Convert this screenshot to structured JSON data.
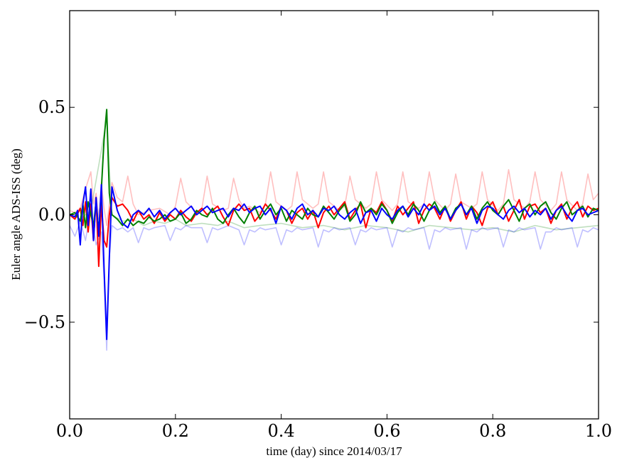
{
  "chart_data": {
    "type": "line",
    "title": "",
    "xlabel": "time (day) since 2014/03/17",
    "ylabel": "Euler angle ADS-ISS (deg)",
    "xlim": [
      0.0,
      1.0
    ],
    "ylim": [
      -0.95,
      0.95
    ],
    "xticks": [
      0.0,
      0.2,
      0.4,
      0.6,
      0.8,
      1.0
    ],
    "xtick_labels": [
      "0.0",
      "0.2",
      "0.4",
      "0.6",
      "0.8",
      "1.0"
    ],
    "yticks": [
      0.5,
      0.0,
      -0.5
    ],
    "ytick_labels": [
      "0.5",
      "0.0",
      "−0.5"
    ],
    "grid": false,
    "legend": "none",
    "series": [
      {
        "color": "#ff0000",
        "opacity": 0.25,
        "x": [
          0.0,
          0.01,
          0.02,
          0.03,
          0.04,
          0.045,
          0.05,
          0.055,
          0.06,
          0.065,
          0.07,
          0.08,
          0.09,
          0.1,
          0.11,
          0.12,
          0.13,
          0.15,
          0.17,
          0.19,
          0.2,
          0.21,
          0.22,
          0.24,
          0.25,
          0.26,
          0.27,
          0.29,
          0.3,
          0.31,
          0.32,
          0.33,
          0.34,
          0.36,
          0.37,
          0.38,
          0.39,
          0.41,
          0.42,
          0.43,
          0.44,
          0.46,
          0.47,
          0.48,
          0.49,
          0.51,
          0.52,
          0.53,
          0.54,
          0.56,
          0.57,
          0.58,
          0.59,
          0.61,
          0.62,
          0.63,
          0.64,
          0.66,
          0.67,
          0.68,
          0.69,
          0.71,
          0.72,
          0.73,
          0.74,
          0.76,
          0.77,
          0.78,
          0.79,
          0.81,
          0.82,
          0.83,
          0.84,
          0.86,
          0.87,
          0.88,
          0.89,
          0.91,
          0.92,
          0.93,
          0.94,
          0.96,
          0.97,
          0.98,
          0.99,
          1.0
        ],
        "y": [
          0.02,
          0.01,
          0.03,
          0.12,
          0.2,
          0.05,
          0.1,
          -0.02,
          0.15,
          0.03,
          -0.05,
          0.15,
          0.08,
          0.06,
          0.18,
          0.05,
          0.0,
          0.02,
          0.03,
          0.0,
          0.04,
          0.17,
          0.06,
          0.01,
          0.03,
          0.18,
          0.05,
          0.02,
          0.03,
          0.17,
          0.07,
          0.03,
          0.04,
          0.01,
          0.05,
          0.2,
          0.06,
          0.02,
          0.04,
          0.2,
          0.07,
          0.03,
          0.05,
          0.2,
          0.06,
          0.02,
          0.04,
          0.18,
          0.07,
          0.03,
          0.05,
          0.2,
          0.07,
          0.02,
          0.05,
          0.2,
          0.06,
          0.03,
          0.05,
          0.2,
          0.07,
          0.02,
          0.05,
          0.19,
          0.06,
          0.03,
          0.05,
          0.2,
          0.07,
          0.02,
          0.05,
          0.21,
          0.07,
          0.03,
          0.06,
          0.2,
          0.07,
          0.02,
          0.05,
          0.2,
          0.07,
          0.02,
          0.05,
          0.19,
          0.07,
          0.1
        ]
      },
      {
        "color": "#008000",
        "opacity": 0.25,
        "x": [
          0.0,
          0.02,
          0.04,
          0.06,
          0.07,
          0.08,
          0.1,
          0.12,
          0.14,
          0.16,
          0.18,
          0.2,
          0.22,
          0.25,
          0.28,
          0.3,
          0.33,
          0.36,
          0.4,
          0.44,
          0.48,
          0.52,
          0.56,
          0.6,
          0.64,
          0.68,
          0.72,
          0.76,
          0.8,
          0.84,
          0.88,
          0.92,
          0.96,
          1.0
        ],
        "y": [
          0.0,
          -0.02,
          0.02,
          0.3,
          0.45,
          0.0,
          -0.03,
          -0.02,
          -0.05,
          -0.03,
          -0.04,
          -0.02,
          -0.05,
          -0.04,
          -0.05,
          -0.03,
          -0.06,
          -0.05,
          -0.04,
          -0.06,
          -0.05,
          -0.07,
          -0.05,
          -0.06,
          -0.08,
          -0.05,
          -0.06,
          -0.07,
          -0.06,
          -0.08,
          -0.05,
          -0.07,
          -0.06,
          -0.05
        ]
      },
      {
        "color": "#0000ff",
        "opacity": 0.25,
        "x": [
          0.0,
          0.01,
          0.02,
          0.03,
          0.04,
          0.05,
          0.06,
          0.065,
          0.07,
          0.075,
          0.08,
          0.09,
          0.1,
          0.11,
          0.12,
          0.13,
          0.14,
          0.15,
          0.16,
          0.18,
          0.19,
          0.2,
          0.21,
          0.22,
          0.23,
          0.25,
          0.26,
          0.27,
          0.28,
          0.29,
          0.3,
          0.32,
          0.33,
          0.34,
          0.35,
          0.36,
          0.37,
          0.39,
          0.4,
          0.41,
          0.42,
          0.43,
          0.44,
          0.46,
          0.47,
          0.48,
          0.49,
          0.5,
          0.51,
          0.53,
          0.54,
          0.55,
          0.56,
          0.57,
          0.58,
          0.6,
          0.61,
          0.62,
          0.63,
          0.64,
          0.65,
          0.67,
          0.68,
          0.69,
          0.7,
          0.71,
          0.72,
          0.74,
          0.75,
          0.76,
          0.77,
          0.78,
          0.79,
          0.81,
          0.82,
          0.83,
          0.84,
          0.85,
          0.86,
          0.88,
          0.89,
          0.9,
          0.91,
          0.92,
          0.93,
          0.95,
          0.96,
          0.97,
          0.98,
          0.99,
          1.0
        ],
        "y": [
          -0.05,
          -0.1,
          -0.03,
          -0.12,
          0.03,
          -0.14,
          -0.08,
          -0.3,
          -0.63,
          -0.2,
          -0.05,
          -0.07,
          -0.06,
          -0.08,
          -0.06,
          -0.13,
          -0.06,
          -0.07,
          -0.06,
          -0.05,
          -0.12,
          -0.06,
          -0.07,
          -0.05,
          -0.06,
          -0.06,
          -0.13,
          -0.06,
          -0.07,
          -0.06,
          -0.05,
          -0.07,
          -0.14,
          -0.07,
          -0.08,
          -0.06,
          -0.07,
          -0.06,
          -0.14,
          -0.07,
          -0.08,
          -0.06,
          -0.07,
          -0.06,
          -0.15,
          -0.07,
          -0.08,
          -0.06,
          -0.07,
          -0.06,
          -0.14,
          -0.07,
          -0.08,
          -0.06,
          -0.07,
          -0.06,
          -0.15,
          -0.07,
          -0.08,
          -0.06,
          -0.07,
          -0.06,
          -0.16,
          -0.07,
          -0.08,
          -0.06,
          -0.07,
          -0.06,
          -0.16,
          -0.07,
          -0.08,
          -0.06,
          -0.07,
          -0.06,
          -0.15,
          -0.07,
          -0.08,
          -0.06,
          -0.07,
          -0.06,
          -0.16,
          -0.08,
          -0.08,
          -0.06,
          -0.07,
          -0.06,
          -0.15,
          -0.07,
          -0.08,
          -0.06,
          -0.07
        ]
      },
      {
        "color": "#ff0000",
        "opacity": 1.0,
        "x": [
          0.0,
          0.01,
          0.02,
          0.025,
          0.03,
          0.035,
          0.04,
          0.045,
          0.05,
          0.055,
          0.06,
          0.065,
          0.07,
          0.075,
          0.08,
          0.09,
          0.1,
          0.11,
          0.12,
          0.13,
          0.14,
          0.15,
          0.16,
          0.17,
          0.18,
          0.19,
          0.2,
          0.21,
          0.22,
          0.23,
          0.24,
          0.25,
          0.26,
          0.27,
          0.28,
          0.29,
          0.3,
          0.31,
          0.32,
          0.33,
          0.34,
          0.35,
          0.36,
          0.37,
          0.38,
          0.39,
          0.4,
          0.41,
          0.42,
          0.43,
          0.44,
          0.45,
          0.46,
          0.47,
          0.48,
          0.49,
          0.5,
          0.51,
          0.52,
          0.53,
          0.54,
          0.55,
          0.56,
          0.57,
          0.58,
          0.59,
          0.6,
          0.61,
          0.62,
          0.63,
          0.64,
          0.65,
          0.66,
          0.67,
          0.68,
          0.69,
          0.7,
          0.71,
          0.72,
          0.73,
          0.74,
          0.75,
          0.76,
          0.77,
          0.78,
          0.79,
          0.8,
          0.81,
          0.82,
          0.83,
          0.84,
          0.85,
          0.86,
          0.87,
          0.88,
          0.89,
          0.9,
          0.91,
          0.92,
          0.93,
          0.94,
          0.95,
          0.96,
          0.97,
          0.98,
          0.99,
          1.0
        ],
        "y": [
          0.0,
          -0.02,
          0.03,
          -0.05,
          0.06,
          -0.08,
          0.05,
          -0.12,
          0.08,
          -0.24,
          0.05,
          -0.12,
          -0.15,
          0.0,
          0.08,
          0.04,
          0.05,
          0.02,
          -0.03,
          0.02,
          -0.02,
          0.0,
          -0.04,
          0.01,
          -0.03,
          0.0,
          -0.02,
          0.02,
          -0.01,
          -0.03,
          0.01,
          0.03,
          0.0,
          0.02,
          0.04,
          -0.01,
          -0.05,
          0.02,
          0.05,
          0.02,
          0.03,
          -0.03,
          0.0,
          0.05,
          0.02,
          -0.02,
          0.04,
          0.02,
          -0.04,
          0.01,
          0.03,
          -0.02,
          0.02,
          -0.06,
          0.01,
          0.04,
          0.0,
          0.03,
          0.06,
          -0.02,
          0.02,
          0.05,
          -0.06,
          0.03,
          0.01,
          0.06,
          0.02,
          -0.03,
          0.04,
          0.0,
          0.03,
          0.06,
          -0.04,
          0.02,
          0.05,
          0.03,
          -0.02,
          0.04,
          -0.03,
          0.02,
          0.06,
          -0.02,
          0.04,
          0.01,
          -0.05,
          0.03,
          0.06,
          0.0,
          0.04,
          -0.03,
          0.02,
          0.07,
          -0.02,
          0.04,
          0.05,
          0.01,
          0.03,
          -0.04,
          0.02,
          0.05,
          -0.02,
          0.03,
          0.06,
          -0.01,
          0.04,
          0.02,
          0.03
        ]
      },
      {
        "color": "#008000",
        "opacity": 1.0,
        "x": [
          0.0,
          0.01,
          0.02,
          0.025,
          0.03,
          0.035,
          0.04,
          0.045,
          0.05,
          0.055,
          0.06,
          0.065,
          0.07,
          0.075,
          0.08,
          0.09,
          0.1,
          0.11,
          0.12,
          0.13,
          0.14,
          0.15,
          0.16,
          0.17,
          0.18,
          0.19,
          0.2,
          0.21,
          0.22,
          0.23,
          0.24,
          0.25,
          0.26,
          0.27,
          0.28,
          0.29,
          0.3,
          0.31,
          0.32,
          0.33,
          0.34,
          0.35,
          0.36,
          0.37,
          0.38,
          0.39,
          0.4,
          0.41,
          0.42,
          0.43,
          0.44,
          0.45,
          0.46,
          0.47,
          0.48,
          0.49,
          0.5,
          0.51,
          0.52,
          0.53,
          0.54,
          0.55,
          0.56,
          0.57,
          0.58,
          0.59,
          0.6,
          0.61,
          0.62,
          0.63,
          0.64,
          0.65,
          0.66,
          0.67,
          0.68,
          0.69,
          0.7,
          0.71,
          0.72,
          0.73,
          0.74,
          0.75,
          0.76,
          0.77,
          0.78,
          0.79,
          0.8,
          0.81,
          0.82,
          0.83,
          0.84,
          0.85,
          0.86,
          0.87,
          0.88,
          0.89,
          0.9,
          0.91,
          0.92,
          0.93,
          0.94,
          0.95,
          0.96,
          0.97,
          0.98,
          0.99,
          1.0
        ],
        "y": [
          0.0,
          0.01,
          -0.03,
          0.05,
          -0.06,
          0.06,
          0.0,
          -0.05,
          0.06,
          -0.08,
          0.12,
          0.35,
          0.49,
          0.1,
          0.0,
          -0.02,
          -0.05,
          -0.02,
          -0.05,
          -0.03,
          -0.04,
          -0.01,
          -0.03,
          -0.02,
          0.0,
          -0.03,
          -0.02,
          0.01,
          -0.04,
          -0.02,
          0.02,
          0.0,
          -0.01,
          0.03,
          -0.02,
          -0.04,
          0.0,
          0.03,
          -0.01,
          -0.04,
          0.01,
          0.04,
          -0.02,
          0.02,
          0.05,
          0.0,
          0.03,
          -0.03,
          0.02,
          0.0,
          -0.02,
          0.03,
          0.0,
          -0.01,
          0.04,
          0.01,
          -0.02,
          0.02,
          0.05,
          -0.03,
          0.0,
          0.06,
          0.01,
          0.03,
          0.0,
          0.05,
          0.02,
          -0.04,
          0.01,
          0.04,
          0.0,
          0.05,
          0.02,
          -0.03,
          0.02,
          0.06,
          0.01,
          0.04,
          -0.02,
          0.03,
          0.05,
          0.0,
          0.04,
          -0.02,
          0.03,
          0.06,
          0.02,
          0.0,
          0.04,
          0.07,
          0.02,
          -0.03,
          0.03,
          0.05,
          0.0,
          0.04,
          0.06,
          0.01,
          -0.02,
          0.03,
          0.06,
          0.0,
          0.02,
          0.04,
          -0.01,
          0.03,
          0.02
        ]
      },
      {
        "color": "#0000ff",
        "opacity": 1.0,
        "x": [
          0.0,
          0.01,
          0.015,
          0.02,
          0.025,
          0.03,
          0.035,
          0.04,
          0.045,
          0.05,
          0.055,
          0.06,
          0.065,
          0.07,
          0.075,
          0.08,
          0.09,
          0.1,
          0.11,
          0.12,
          0.13,
          0.14,
          0.15,
          0.16,
          0.17,
          0.18,
          0.19,
          0.2,
          0.21,
          0.22,
          0.23,
          0.24,
          0.25,
          0.26,
          0.27,
          0.28,
          0.29,
          0.3,
          0.31,
          0.32,
          0.33,
          0.34,
          0.35,
          0.36,
          0.37,
          0.38,
          0.39,
          0.4,
          0.41,
          0.42,
          0.43,
          0.44,
          0.45,
          0.46,
          0.47,
          0.48,
          0.49,
          0.5,
          0.51,
          0.52,
          0.53,
          0.54,
          0.55,
          0.56,
          0.57,
          0.58,
          0.59,
          0.6,
          0.61,
          0.62,
          0.63,
          0.64,
          0.65,
          0.66,
          0.67,
          0.68,
          0.69,
          0.7,
          0.71,
          0.72,
          0.73,
          0.74,
          0.75,
          0.76,
          0.77,
          0.78,
          0.79,
          0.8,
          0.81,
          0.82,
          0.83,
          0.84,
          0.85,
          0.86,
          0.87,
          0.88,
          0.89,
          0.9,
          0.91,
          0.92,
          0.93,
          0.94,
          0.95,
          0.96,
          0.97,
          0.98,
          0.99,
          1.0
        ],
        "y": [
          0.0,
          -0.01,
          0.02,
          -0.14,
          0.05,
          0.13,
          -0.05,
          0.12,
          -0.12,
          0.08,
          -0.1,
          0.14,
          -0.25,
          -0.58,
          -0.2,
          0.13,
          0.02,
          -0.04,
          -0.06,
          0.0,
          0.02,
          0.0,
          0.03,
          -0.01,
          0.02,
          -0.02,
          0.01,
          0.03,
          0.0,
          0.02,
          0.04,
          0.0,
          0.02,
          0.04,
          0.01,
          0.02,
          0.03,
          -0.01,
          0.03,
          0.02,
          0.05,
          0.01,
          0.03,
          0.04,
          0.0,
          0.03,
          -0.04,
          0.04,
          0.02,
          -0.02,
          0.03,
          0.05,
          0.0,
          0.02,
          -0.01,
          0.03,
          0.02,
          0.04,
          0.0,
          -0.02,
          0.01,
          0.03,
          -0.04,
          0.01,
          0.02,
          -0.03,
          0.03,
          0.0,
          -0.02,
          0.02,
          0.04,
          -0.01,
          0.03,
          0.0,
          0.05,
          0.02,
          0.04,
          0.0,
          0.03,
          -0.02,
          0.02,
          0.05,
          0.0,
          0.03,
          -0.04,
          0.02,
          0.04,
          0.03,
          0.0,
          -0.02,
          0.02,
          0.04,
          0.01,
          0.03,
          -0.01,
          0.02,
          0.0,
          0.03,
          -0.02,
          0.02,
          0.04,
          0.0,
          -0.03,
          0.02,
          0.03,
          0.0,
          0.01,
          0.02
        ]
      }
    ]
  }
}
